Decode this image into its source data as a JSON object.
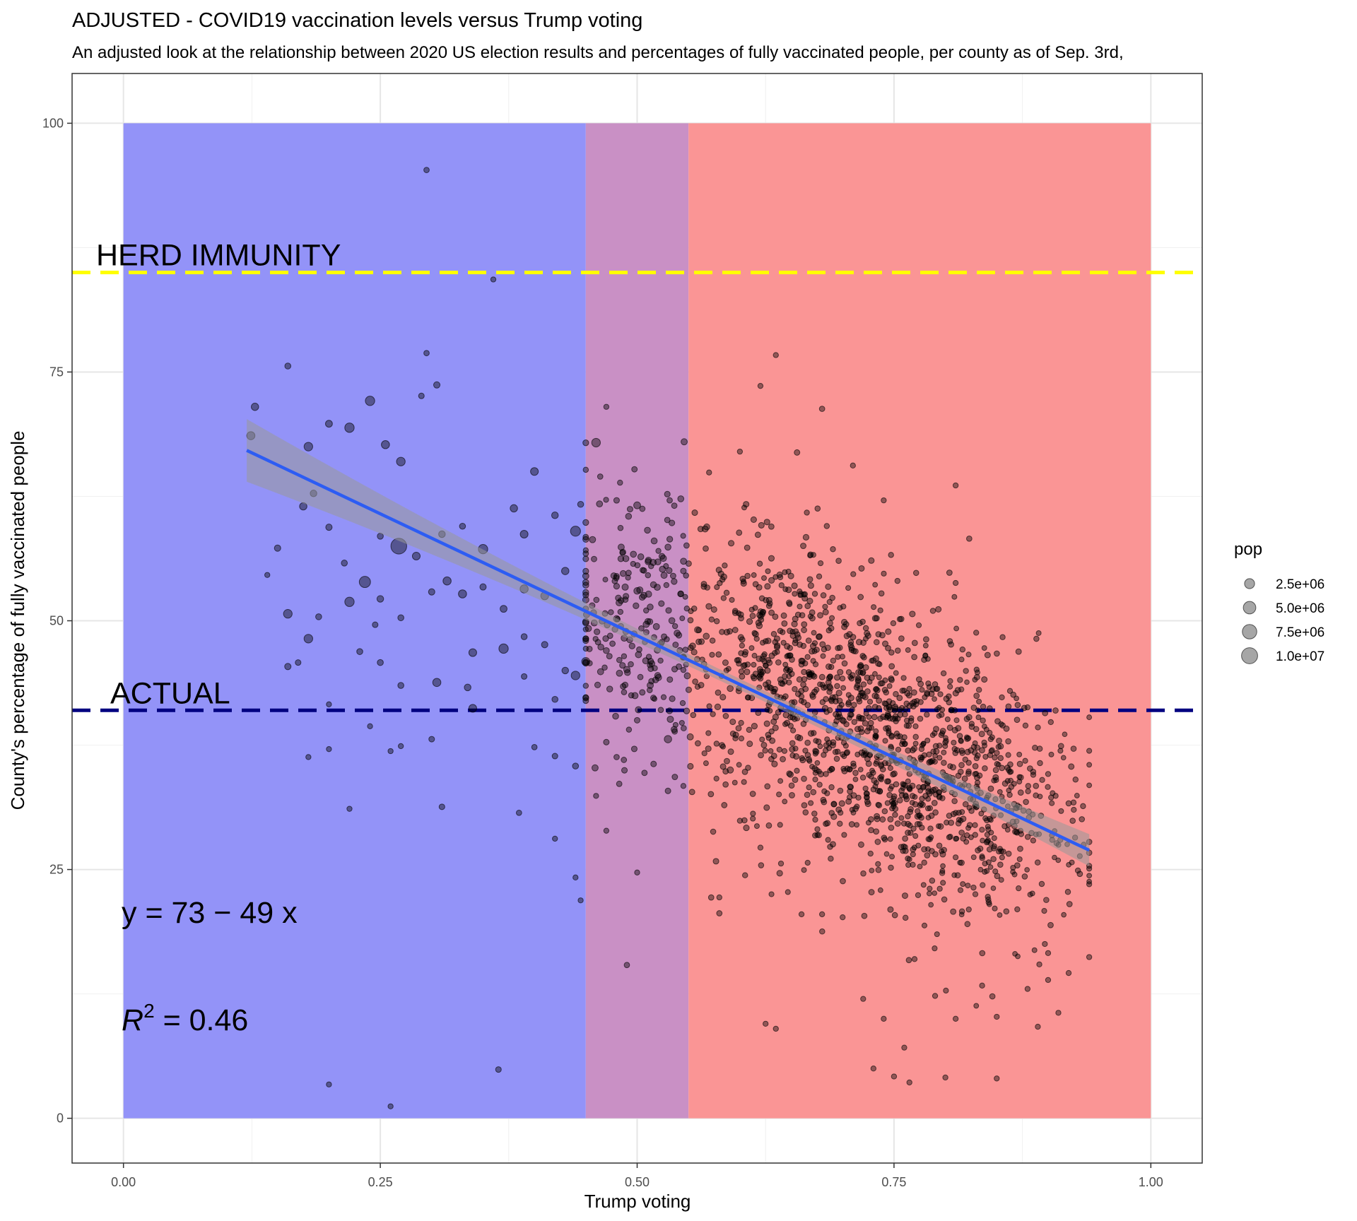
{
  "chart_data": {
    "type": "scatter",
    "title": "ADJUSTED - COVID19 vaccination levels versus Trump voting",
    "subtitle": "An adjusted look at the relationship between 2020 US election results and percentages of fully vaccinated people, per county as of Sep. 3rd,",
    "xlabel": "Trump voting",
    "ylabel": "County's percentage of fully vaccinated people",
    "xlim": [
      -0.05,
      1.05
    ],
    "ylim": [
      -4.5,
      105
    ],
    "x_ticks": [
      0.0,
      0.25,
      0.5,
      0.75,
      1.0
    ],
    "x_tick_labels": [
      "0.00",
      "0.25",
      "0.50",
      "0.75",
      "1.00"
    ],
    "y_ticks": [
      0,
      25,
      50,
      75,
      100
    ],
    "y_tick_labels": [
      "0",
      "25",
      "50",
      "75",
      "100"
    ],
    "grid": true,
    "regions": [
      {
        "x": [
          0.0,
          0.45
        ],
        "y": [
          0,
          100
        ],
        "color": "#9393f8"
      },
      {
        "x": [
          0.45,
          0.55
        ],
        "y": [
          0,
          100
        ],
        "color": "#c990c5"
      },
      {
        "x": [
          0.55,
          1.0
        ],
        "y": [
          0,
          100
        ],
        "color": "#fa9595"
      }
    ],
    "reference_lines": [
      {
        "label": "HERD IMMUNITY",
        "y": 85,
        "color": "#ffff00",
        "style": "dashed"
      },
      {
        "label": "ACTUAL",
        "y": 41,
        "color": "#000080",
        "style": "dashed"
      }
    ],
    "fit_line": {
      "intercept": 73,
      "slope": -49,
      "x_range": [
        0.12,
        0.94
      ],
      "color": "#2d5cf3",
      "band_color": "#999999"
    },
    "annotations": {
      "equation": "y = 73 − 49 x",
      "r2_base": "R",
      "r2_sup": "2",
      "r2_rest": " = 0.46"
    },
    "legend": {
      "title": "pop",
      "position": "right",
      "entries": [
        {
          "label": "2.5e+06",
          "pop": 2500000
        },
        {
          "label": "5.0e+06",
          "pop": 5000000
        },
        {
          "label": "7.5e+06",
          "pop": 7500000
        },
        {
          "label": "1.0e+07",
          "pop": 10000000
        }
      ]
    },
    "point_color": "#000000",
    "points": [
      [
        0.124,
        68.6,
        1200000
      ],
      [
        0.128,
        71.5,
        800000
      ],
      [
        0.16,
        75.6,
        300000
      ],
      [
        0.18,
        67.5,
        1500000
      ],
      [
        0.185,
        62.8,
        500000
      ],
      [
        0.2,
        69.8,
        600000
      ],
      [
        0.22,
        69.4,
        2000000
      ],
      [
        0.24,
        72.1,
        2000000
      ],
      [
        0.255,
        67.7,
        1200000
      ],
      [
        0.27,
        66.0,
        1500000
      ],
      [
        0.29,
        72.6,
        200000
      ],
      [
        0.305,
        73.7,
        400000
      ],
      [
        0.295,
        95.3,
        150000
      ],
      [
        0.295,
        76.9,
        150000
      ],
      [
        0.36,
        84.3,
        100000
      ],
      [
        0.175,
        61.5,
        800000
      ],
      [
        0.2,
        59.4,
        400000
      ],
      [
        0.215,
        55.8,
        300000
      ],
      [
        0.25,
        58.5,
        300000
      ],
      [
        0.268,
        57.5,
        9500000
      ],
      [
        0.235,
        53.9,
        3600000
      ],
      [
        0.22,
        51.9,
        2000000
      ],
      [
        0.16,
        50.7,
        1500000
      ],
      [
        0.18,
        48.2,
        1500000
      ],
      [
        0.16,
        45.4,
        400000
      ],
      [
        0.17,
        45.8,
        200000
      ],
      [
        0.19,
        50.4,
        300000
      ],
      [
        0.14,
        54.6,
        100000
      ],
      [
        0.15,
        57.3,
        400000
      ],
      [
        0.285,
        56.5,
        1000000
      ],
      [
        0.31,
        58.7,
        500000
      ],
      [
        0.33,
        59.5,
        300000
      ],
      [
        0.35,
        57.2,
        2000000
      ],
      [
        0.38,
        61.3,
        800000
      ],
      [
        0.39,
        58.7,
        1000000
      ],
      [
        0.4,
        65.0,
        1000000
      ],
      [
        0.42,
        60.6,
        500000
      ],
      [
        0.44,
        59.0,
        2500000
      ],
      [
        0.445,
        61.7,
        300000
      ],
      [
        0.43,
        55.0,
        800000
      ],
      [
        0.41,
        52.5,
        1000000
      ],
      [
        0.39,
        53.2,
        1200000
      ],
      [
        0.37,
        51.2,
        600000
      ],
      [
        0.35,
        53.4,
        400000
      ],
      [
        0.33,
        52.7,
        1200000
      ],
      [
        0.315,
        54.0,
        1200000
      ],
      [
        0.3,
        52.9,
        400000
      ],
      [
        0.27,
        50.3,
        300000
      ],
      [
        0.25,
        52.2,
        500000
      ],
      [
        0.245,
        49.6,
        200000
      ],
      [
        0.23,
        46.9,
        300000
      ],
      [
        0.25,
        45.8,
        300000
      ],
      [
        0.27,
        43.5,
        300000
      ],
      [
        0.305,
        43.8,
        1200000
      ],
      [
        0.335,
        43.3,
        500000
      ],
      [
        0.34,
        41.2,
        1000000
      ],
      [
        0.34,
        46.8,
        1000000
      ],
      [
        0.37,
        47.2,
        2000000
      ],
      [
        0.39,
        48.4,
        300000
      ],
      [
        0.41,
        47.6,
        400000
      ],
      [
        0.43,
        45.0,
        500000
      ],
      [
        0.44,
        44.5,
        1500000
      ],
      [
        0.45,
        45.9,
        1200000
      ],
      [
        0.42,
        42.1,
        300000
      ],
      [
        0.39,
        44.4,
        200000
      ],
      [
        0.4,
        37.3,
        150000
      ],
      [
        0.42,
        36.4,
        200000
      ],
      [
        0.44,
        35.4,
        300000
      ],
      [
        0.3,
        38.1,
        200000
      ],
      [
        0.31,
        31.3,
        200000
      ],
      [
        0.27,
        37.4,
        100000
      ],
      [
        0.26,
        36.9,
        100000
      ],
      [
        0.24,
        39.4,
        100000
      ],
      [
        0.22,
        31.1,
        100000
      ],
      [
        0.18,
        36.3,
        100000
      ],
      [
        0.2,
        37.1,
        100000
      ],
      [
        0.2,
        41.6,
        100000
      ],
      [
        0.385,
        30.7,
        150000
      ],
      [
        0.42,
        28.1,
        100000
      ],
      [
        0.44,
        24.2,
        100000
      ],
      [
        0.445,
        21.9,
        100000
      ],
      [
        0.2,
        3.4,
        100000
      ],
      [
        0.26,
        1.2,
        100000
      ],
      [
        0.365,
        4.9,
        200000
      ],
      [
        0.47,
        71.5,
        100000
      ],
      [
        0.46,
        67.9,
        1500000
      ],
      [
        0.48,
        62.1,
        200000
      ],
      [
        0.5,
        61.6,
        600000
      ],
      [
        0.51,
        59.1,
        300000
      ],
      [
        0.53,
        57.4,
        300000
      ],
      [
        0.545,
        55.0,
        200000
      ],
      [
        0.5,
        53.0,
        500000
      ],
      [
        0.48,
        50.2,
        400000
      ],
      [
        0.47,
        47.0,
        300000
      ],
      [
        0.49,
        45.1,
        400000
      ],
      [
        0.52,
        44.5,
        300000
      ],
      [
        0.545,
        46.4,
        200000
      ],
      [
        0.5,
        40.0,
        200000
      ],
      [
        0.47,
        37.8,
        200000
      ],
      [
        0.46,
        32.4,
        100000
      ],
      [
        0.47,
        28.9,
        100000
      ],
      [
        0.5,
        24.7,
        100000
      ],
      [
        0.49,
        15.4,
        150000
      ],
      [
        0.53,
        38.1,
        800000
      ],
      [
        0.53,
        32.9,
        200000
      ],
      [
        0.545,
        33.4,
        100000
      ],
      [
        0.48,
        36.3,
        150000
      ],
      [
        0.505,
        42.8,
        200000
      ],
      [
        0.57,
        64.9,
        100000
      ],
      [
        0.6,
        67.0,
        100000
      ],
      [
        0.62,
        73.6,
        100000
      ],
      [
        0.635,
        76.7,
        100000
      ],
      [
        0.68,
        71.3,
        150000
      ],
      [
        0.71,
        65.6,
        100000
      ],
      [
        0.74,
        62.1,
        100000
      ],
      [
        0.81,
        63.6,
        100000
      ],
      [
        0.81,
        53.8,
        100000
      ],
      [
        0.83,
        48.8,
        100000
      ],
      [
        0.855,
        42.3,
        100000
      ],
      [
        0.88,
        41.3,
        100000
      ],
      [
        0.9,
        34.6,
        100000
      ],
      [
        0.925,
        31.0,
        100000
      ],
      [
        0.94,
        16.2,
        100000
      ],
      [
        0.9,
        16.6,
        100000
      ],
      [
        0.92,
        14.6,
        100000
      ],
      [
        0.9,
        13.9,
        100000
      ],
      [
        0.91,
        10.6,
        100000
      ],
      [
        0.89,
        9.2,
        100000
      ],
      [
        0.88,
        13.0,
        100000
      ],
      [
        0.85,
        10.2,
        100000
      ],
      [
        0.81,
        10.0,
        100000
      ],
      [
        0.79,
        12.3,
        100000
      ],
      [
        0.77,
        16.0,
        100000
      ],
      [
        0.76,
        7.1,
        100000
      ],
      [
        0.75,
        4.2,
        100000
      ],
      [
        0.74,
        10.0,
        100000
      ],
      [
        0.73,
        5.0,
        100000
      ],
      [
        0.72,
        12.0,
        100000
      ],
      [
        0.7,
        20.2,
        100000
      ],
      [
        0.68,
        20.5,
        100000
      ],
      [
        0.66,
        20.5,
        100000
      ],
      [
        0.64,
        25.6,
        100000
      ],
      [
        0.62,
        27.2,
        100000
      ],
      [
        0.6,
        29.9,
        100000
      ],
      [
        0.58,
        22.2,
        100000
      ],
      [
        0.58,
        20.6,
        150000
      ],
      [
        0.625,
        9.5,
        100000
      ],
      [
        0.635,
        9.0,
        100000
      ],
      [
        0.8,
        4.1,
        100000
      ],
      [
        0.85,
        4.0,
        100000
      ],
      [
        0.765,
        3.6,
        100000
      ],
      [
        0.87,
        21.0,
        100000
      ]
    ],
    "dense_clusters": [
      {
        "n": 230,
        "center": [
          0.5,
          50.5
        ],
        "spread": [
          0.045,
          6.5
        ],
        "pop": 220000
      },
      {
        "n": 520,
        "center": [
          0.64,
          45.0
        ],
        "spread": [
          0.06,
          7.0
        ],
        "pop": 130000
      },
      {
        "n": 620,
        "center": [
          0.75,
          37.0
        ],
        "spread": [
          0.055,
          6.5
        ],
        "pop": 110000
      },
      {
        "n": 380,
        "center": [
          0.84,
          30.5
        ],
        "spread": [
          0.05,
          6.5
        ],
        "pop": 90000
      }
    ]
  }
}
